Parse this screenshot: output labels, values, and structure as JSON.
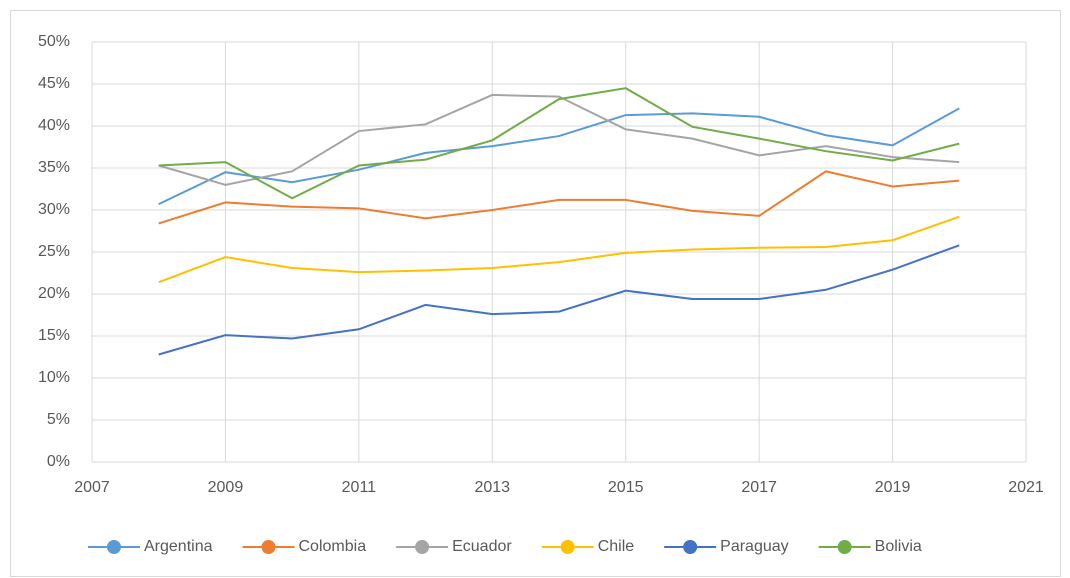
{
  "chart_data": {
    "type": "line",
    "x": [
      2008,
      2009,
      2010,
      2011,
      2012,
      2013,
      2014,
      2015,
      2016,
      2017,
      2018,
      2019,
      2020
    ],
    "xlim": [
      2007,
      2021
    ],
    "xticks": [
      2007,
      2009,
      2011,
      2013,
      2015,
      2017,
      2019,
      2021
    ],
    "ylim": [
      0,
      50
    ],
    "yticks": [
      {
        "value": 0,
        "label": "0%"
      },
      {
        "value": 5,
        "label": "5%"
      },
      {
        "value": 10,
        "label": "10%"
      },
      {
        "value": 15,
        "label": "15%"
      },
      {
        "value": 20,
        "label": "20%"
      },
      {
        "value": 25,
        "label": "25%"
      },
      {
        "value": 30,
        "label": "30%"
      },
      {
        "value": 35,
        "label": "35%"
      },
      {
        "value": 40,
        "label": "40%"
      },
      {
        "value": 45,
        "label": "45%"
      },
      {
        "value": 50,
        "label": "50%"
      }
    ],
    "grid": true,
    "legend": "bottom",
    "series": [
      {
        "name": "Argentina",
        "color": "#5b9bd5",
        "values": [
          30.7,
          34.5,
          33.3,
          34.8,
          36.8,
          37.6,
          38.8,
          41.3,
          41.5,
          41.1,
          38.9,
          37.7,
          42.1
        ]
      },
      {
        "name": "Colombia",
        "color": "#ed7d31",
        "values": [
          28.4,
          30.9,
          30.4,
          30.2,
          29.0,
          30.0,
          31.2,
          31.2,
          29.9,
          29.3,
          34.6,
          32.8,
          33.5
        ]
      },
      {
        "name": "Ecuador",
        "color": "#a5a5a5",
        "values": [
          35.3,
          33.0,
          34.6,
          39.4,
          40.2,
          43.7,
          43.5,
          39.6,
          38.5,
          36.5,
          37.6,
          36.3,
          35.7
        ]
      },
      {
        "name": "Chile",
        "color": "#ffc000",
        "values": [
          21.4,
          24.4,
          23.1,
          22.6,
          22.8,
          23.1,
          23.8,
          24.9,
          25.3,
          25.5,
          25.6,
          26.4,
          29.2
        ]
      },
      {
        "name": "Paraguay",
        "color": "#4472c4",
        "values": [
          12.8,
          15.1,
          14.7,
          15.8,
          18.7,
          17.6,
          17.9,
          20.4,
          19.4,
          19.4,
          20.5,
          22.9,
          25.8
        ]
      },
      {
        "name": "Bolivia",
        "color": "#70ad47",
        "values": [
          35.3,
          35.7,
          31.4,
          35.3,
          36.0,
          38.3,
          43.2,
          44.5,
          39.9,
          38.5,
          37.0,
          35.9,
          37.9
        ]
      }
    ]
  }
}
